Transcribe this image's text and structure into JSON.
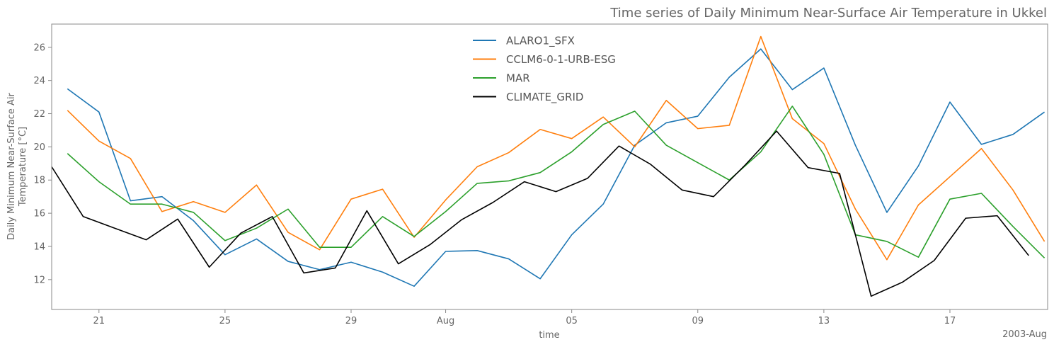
{
  "chart_data": {
    "type": "line",
    "title": "Time series of Daily Minimum Near-Surface Air Temperature in Ukkel",
    "xlabel": "time",
    "ylabel_lines": [
      "Daily Minimum Near-Surface Air",
      "Temperature [°C]"
    ],
    "x_offset_label": "2003-Aug",
    "x_start_date": "2003-07-20",
    "xlim": [
      -0.5,
      31.1
    ],
    "ylim": [
      10.2,
      27.4
    ],
    "grid": false,
    "legend_position": "top-center",
    "x_ticks": [
      {
        "day": 1,
        "label": "21"
      },
      {
        "day": 5,
        "label": "25"
      },
      {
        "day": 9,
        "label": "29"
      },
      {
        "day": 12,
        "label": "Aug"
      },
      {
        "day": 16,
        "label": "05"
      },
      {
        "day": 20,
        "label": "09"
      },
      {
        "day": 24,
        "label": "13"
      },
      {
        "day": 28,
        "label": "17"
      }
    ],
    "y_ticks": [
      12,
      14,
      16,
      18,
      20,
      22,
      24,
      26
    ],
    "series": [
      {
        "name": "ALARO1_SFX",
        "color": "#1f77b4",
        "x_start": 0,
        "values": [
          23.5,
          22.1,
          16.75,
          17.0,
          15.55,
          13.5,
          14.45,
          13.1,
          12.6,
          13.05,
          12.45,
          11.6,
          13.7,
          13.75,
          13.25,
          12.05,
          14.7,
          16.55,
          20.1,
          21.45,
          21.85,
          24.2,
          25.9,
          23.45,
          24.75,
          20.1,
          16.05,
          18.85,
          22.7,
          20.15,
          20.75,
          22.1
        ]
      },
      {
        "name": "CCLM6-0-1-URB-ESG",
        "color": "#ff7f0e",
        "x_start": 0,
        "values": [
          22.2,
          20.35,
          19.3,
          16.1,
          16.7,
          16.05,
          17.7,
          14.85,
          13.8,
          16.85,
          17.45,
          14.55,
          16.8,
          18.8,
          19.65,
          21.05,
          20.5,
          21.8,
          20.0,
          22.8,
          21.1,
          21.3,
          26.65,
          21.7,
          20.2,
          16.25,
          13.2,
          16.5,
          18.2,
          19.9,
          17.4,
          14.3
        ]
      },
      {
        "name": "MAR",
        "color": "#2ca02c",
        "x_start": 0,
        "values": [
          19.6,
          17.9,
          16.55,
          16.55,
          16.05,
          14.35,
          15.1,
          16.25,
          13.95,
          13.95,
          15.8,
          14.6,
          16.1,
          17.8,
          17.95,
          18.45,
          19.7,
          21.35,
          22.15,
          20.1,
          19.05,
          18.0,
          19.7,
          22.45,
          19.55,
          14.7,
          14.3,
          13.35,
          16.85,
          17.2,
          15.2,
          13.3
        ]
      },
      {
        "name": "CLIMATE_GRID",
        "color": "#000000",
        "x_start": -0.5,
        "values": [
          18.8,
          15.8,
          15.1,
          14.4,
          15.65,
          12.75,
          14.8,
          15.8,
          12.4,
          12.7,
          16.15,
          12.95,
          14.1,
          15.6,
          16.65,
          17.9,
          17.3,
          18.1,
          20.05,
          18.95,
          17.4,
          17.0,
          18.9,
          20.95,
          18.75,
          18.4,
          11.0,
          11.85,
          13.15,
          15.7,
          15.85,
          13.45
        ]
      }
    ]
  }
}
